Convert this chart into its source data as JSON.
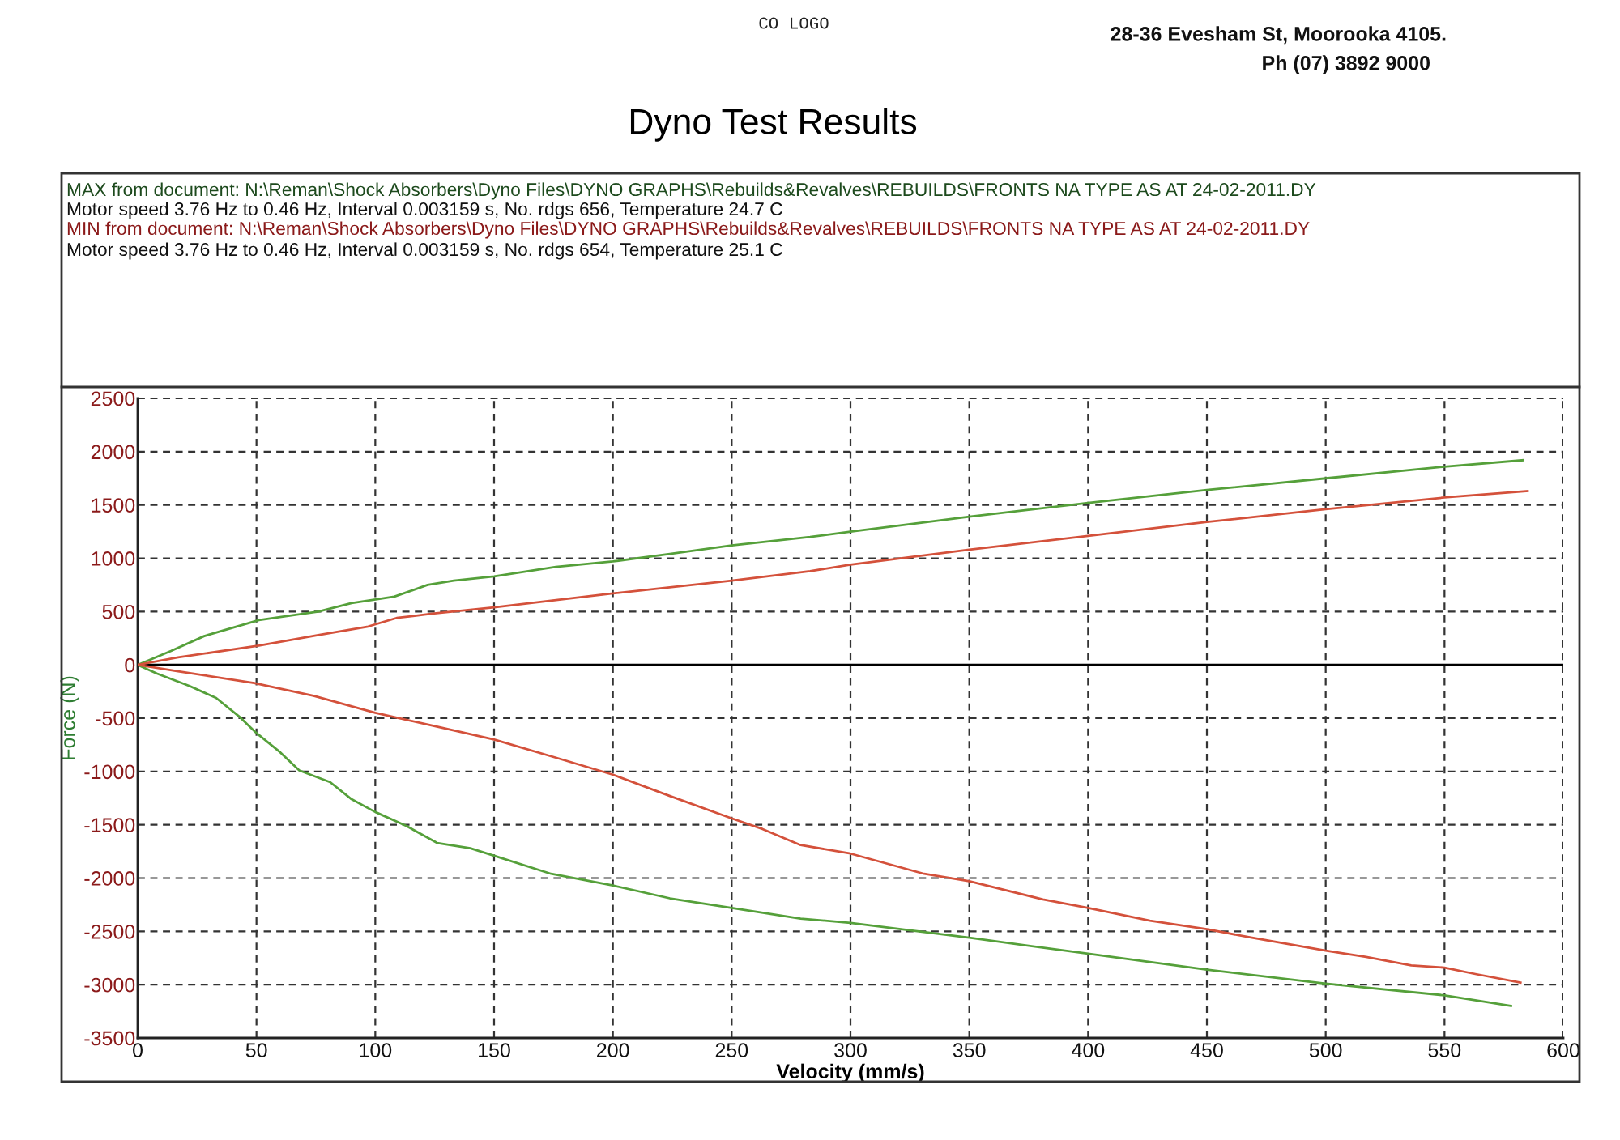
{
  "chart_data": {
    "type": "line",
    "title": "Dyno Test Results",
    "xlabel": "Velocity (mm/s)",
    "ylabel": "Force (N)",
    "annotations": [
      "CO LOGO",
      "28-36 Evesham St, Moorooka 4105.",
      "Ph (07) 3892 9000",
      "MAX from document: N:\\Reman\\Shock Absorbers\\Dyno Files\\DYNO GRAPHS\\Rebuilds&Revalves\\REBUILDS\\FRONTS NA TYPE AS AT 24-02-2011.DY",
      "Motor speed 3.76 Hz to 0.46 Hz, Interval 0.003159 s, No. rdgs 656, Temperature 24.7 C",
      "MIN from document: N:\\Reman\\Shock Absorbers\\Dyno Files\\DYNO GRAPHS\\Rebuilds&Revalves\\REBUILDS\\FRONTS NA TYPE AS AT 24-02-2011.DY",
      "Motor speed 3.76 Hz to 0.46 Hz, Interval 0.003159 s, No. rdgs 654, Temperature 25.1 C"
    ],
    "series": [
      {
        "color": "#55a03a",
        "x": [
          0,
          14,
          28,
          51,
          76,
          90,
          108,
          122,
          133,
          150,
          176,
          200,
          224,
          250,
          283,
          300,
          350,
          400,
          450,
          500,
          550,
          583
        ],
        "values": [
          0,
          130,
          270,
          420,
          500,
          580,
          640,
          750,
          790,
          830,
          920,
          970,
          1040,
          1120,
          1200,
          1250,
          1390,
          1520,
          1640,
          1750,
          1860,
          1920
        ]
      },
      {
        "color": "#55a03a",
        "x": [
          0,
          8,
          22,
          33,
          43,
          50,
          60,
          68,
          81,
          90,
          100,
          113,
          126,
          140,
          150,
          174,
          200,
          224,
          250,
          279,
          300,
          350,
          400,
          450,
          500,
          550,
          578
        ],
        "values": [
          0,
          -80,
          -200,
          -310,
          -490,
          -640,
          -820,
          -990,
          -1100,
          -1260,
          -1380,
          -1510,
          -1670,
          -1720,
          -1790,
          -1960,
          -2070,
          -2190,
          -2280,
          -2380,
          -2420,
          -2560,
          -2710,
          -2860,
          -2990,
          -3100,
          -3200
        ]
      },
      {
        "color": "#d4513b",
        "x": [
          0,
          17,
          51,
          76,
          97,
          109,
          124,
          150,
          200,
          250,
          283,
          300,
          350,
          400,
          450,
          500,
          550,
          585
        ],
        "values": [
          0,
          70,
          180,
          280,
          360,
          440,
          480,
          540,
          670,
          790,
          880,
          940,
          1080,
          1210,
          1340,
          1460,
          1570,
          1630
        ]
      },
      {
        "color": "#d4513b",
        "x": [
          0,
          17,
          49,
          74,
          100,
          124,
          150,
          176,
          200,
          224,
          250,
          263,
          279,
          300,
          331,
          350,
          381,
          400,
          426,
          450,
          469,
          500,
          517,
          536,
          550,
          563,
          582
        ],
        "values": [
          0,
          -60,
          -170,
          -290,
          -450,
          -570,
          -700,
          -870,
          -1030,
          -1230,
          -1440,
          -1540,
          -1690,
          -1770,
          -1960,
          -2030,
          -2200,
          -2280,
          -2400,
          -2480,
          -2560,
          -2680,
          -2740,
          -2820,
          -2840,
          -2900,
          -2980
        ]
      }
    ],
    "xlim": [
      0,
      600
    ],
    "xticks": [
      0,
      50,
      100,
      150,
      200,
      250,
      300,
      350,
      400,
      450,
      500,
      550,
      600
    ],
    "ylim": [
      -3500,
      2500
    ],
    "yticks": [
      -3500,
      -3000,
      -2500,
      -2000,
      -1500,
      -1000,
      -500,
      0,
      500,
      1000,
      1500,
      2000,
      2500
    ],
    "ref_lines": [
      {
        "axis": "y",
        "value": 0,
        "color": "#000000"
      }
    ],
    "grid": true
  }
}
